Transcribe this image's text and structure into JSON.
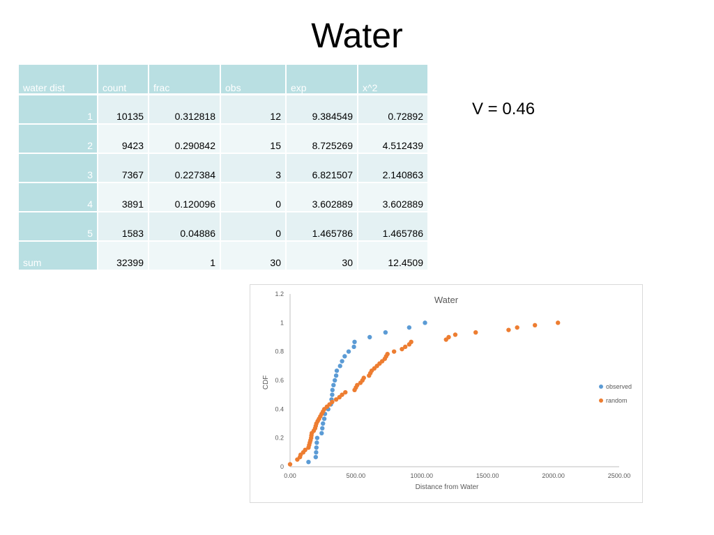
{
  "slide": {
    "title": "Water",
    "stat": "V = 0.46"
  },
  "table": {
    "headers": [
      "water dist",
      "count",
      "frac",
      "obs",
      "exp",
      "x^2"
    ],
    "rows": [
      [
        "1",
        "10135",
        "0.312818",
        "12",
        "9.384549",
        "0.72892"
      ],
      [
        "2",
        "9423",
        "0.290842",
        "15",
        "8.725269",
        "4.512439"
      ],
      [
        "3",
        "7367",
        "0.227384",
        "3",
        "6.821507",
        "2.140863"
      ],
      [
        "4",
        "3891",
        "0.120096",
        "0",
        "3.602889",
        "3.602889"
      ],
      [
        "5",
        "1583",
        "0.04886",
        "0",
        "1.465786",
        "1.465786"
      ],
      [
        "sum",
        "32399",
        "1",
        "30",
        "30",
        "12.4509"
      ]
    ]
  },
  "chart_data": {
    "type": "scatter",
    "title": "Water",
    "xlabel": "Distance from Water",
    "ylabel": "CDF",
    "xlim": [
      0,
      2500
    ],
    "ylim": [
      0,
      1.2
    ],
    "xticks": [
      "0.00",
      "500.00",
      "1000.00",
      "1500.00",
      "2000.00",
      "2500.00"
    ],
    "yticks": [
      "0",
      "0.2",
      "0.4",
      "0.6",
      "0.8",
      "1",
      "1.2"
    ],
    "legend_position": "right",
    "grid": false,
    "series": [
      {
        "name": "observed",
        "color": "#5b9bd5",
        "points": [
          [
            140,
            0.033
          ],
          [
            195,
            0.067
          ],
          [
            198,
            0.1
          ],
          [
            200,
            0.133
          ],
          [
            203,
            0.167
          ],
          [
            206,
            0.2
          ],
          [
            240,
            0.233
          ],
          [
            245,
            0.267
          ],
          [
            250,
            0.3
          ],
          [
            260,
            0.333
          ],
          [
            265,
            0.367
          ],
          [
            290,
            0.4
          ],
          [
            310,
            0.433
          ],
          [
            315,
            0.467
          ],
          [
            320,
            0.5
          ],
          [
            322,
            0.533
          ],
          [
            330,
            0.567
          ],
          [
            340,
            0.6
          ],
          [
            350,
            0.633
          ],
          [
            355,
            0.667
          ],
          [
            380,
            0.7
          ],
          [
            395,
            0.733
          ],
          [
            415,
            0.767
          ],
          [
            445,
            0.8
          ],
          [
            485,
            0.833
          ],
          [
            490,
            0.867
          ],
          [
            605,
            0.9
          ],
          [
            725,
            0.933
          ],
          [
            905,
            0.967
          ],
          [
            1025,
            1.0
          ]
        ]
      },
      {
        "name": "random",
        "color": "#ed7d31",
        "points": [
          [
            0,
            0.017
          ],
          [
            55,
            0.05
          ],
          [
            75,
            0.067
          ],
          [
            80,
            0.083
          ],
          [
            100,
            0.1
          ],
          [
            115,
            0.117
          ],
          [
            140,
            0.133
          ],
          [
            145,
            0.15
          ],
          [
            150,
            0.167
          ],
          [
            155,
            0.183
          ],
          [
            160,
            0.2
          ],
          [
            162,
            0.217
          ],
          [
            165,
            0.233
          ],
          [
            180,
            0.25
          ],
          [
            190,
            0.267
          ],
          [
            195,
            0.283
          ],
          [
            200,
            0.3
          ],
          [
            210,
            0.317
          ],
          [
            220,
            0.333
          ],
          [
            230,
            0.35
          ],
          [
            240,
            0.367
          ],
          [
            250,
            0.383
          ],
          [
            260,
            0.4
          ],
          [
            280,
            0.417
          ],
          [
            300,
            0.433
          ],
          [
            320,
            0.45
          ],
          [
            350,
            0.467
          ],
          [
            375,
            0.483
          ],
          [
            395,
            0.5
          ],
          [
            420,
            0.517
          ],
          [
            490,
            0.533
          ],
          [
            500,
            0.55
          ],
          [
            510,
            0.567
          ],
          [
            535,
            0.583
          ],
          [
            550,
            0.6
          ],
          [
            560,
            0.617
          ],
          [
            600,
            0.633
          ],
          [
            610,
            0.65
          ],
          [
            620,
            0.667
          ],
          [
            640,
            0.683
          ],
          [
            660,
            0.7
          ],
          [
            680,
            0.717
          ],
          [
            700,
            0.733
          ],
          [
            720,
            0.75
          ],
          [
            730,
            0.767
          ],
          [
            740,
            0.783
          ],
          [
            790,
            0.8
          ],
          [
            850,
            0.817
          ],
          [
            875,
            0.833
          ],
          [
            905,
            0.85
          ],
          [
            920,
            0.867
          ],
          [
            1185,
            0.883
          ],
          [
            1205,
            0.9
          ],
          [
            1255,
            0.917
          ],
          [
            1410,
            0.933
          ],
          [
            1660,
            0.95
          ],
          [
            1725,
            0.967
          ],
          [
            1860,
            0.983
          ],
          [
            2035,
            1.0
          ]
        ]
      }
    ]
  }
}
